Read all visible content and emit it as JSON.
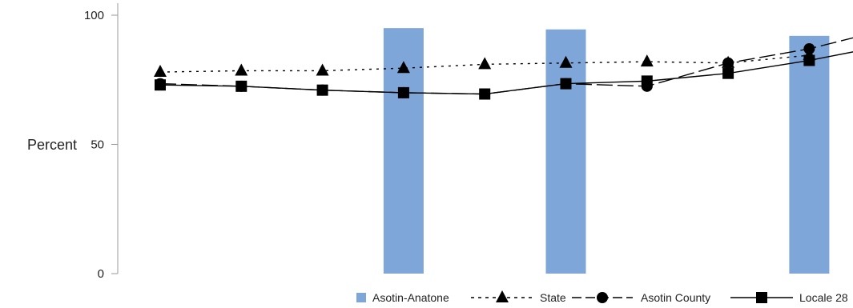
{
  "chart_data": {
    "type": "bar+line",
    "title": "",
    "xlabel": "",
    "ylabel": "Percent",
    "ylim": [
      0,
      100
    ],
    "yticks": [
      0,
      50,
      100
    ],
    "x": [
      1,
      2,
      3,
      4,
      5,
      6,
      7,
      8,
      9
    ],
    "bars": {
      "name": "Asotin-Anatone",
      "color": "#7ea6d8",
      "values": [
        null,
        null,
        null,
        95,
        null,
        94.5,
        null,
        null,
        92
      ]
    },
    "series": [
      {
        "name": "State",
        "marker": "triangle",
        "dash": "dotted",
        "values": [
          78,
          78.5,
          78.5,
          79.5,
          81,
          81.5,
          82,
          81.5,
          84.5
        ]
      },
      {
        "name": "Asotin County",
        "marker": "circle",
        "dash": "dashed",
        "values": [
          73.5,
          72.5,
          71,
          70,
          69.5,
          73.5,
          72.5,
          81.5,
          87
        ],
        "tail": 91.5
      },
      {
        "name": "Locale 28",
        "marker": "square",
        "dash": "solid",
        "values": [
          73,
          72.5,
          71,
          70,
          69.5,
          73.5,
          74.5,
          77.5,
          82.5
        ],
        "tail": 86
      }
    ],
    "legend": {
      "position": "bottom-right",
      "items": [
        "Asotin-Anatone",
        "State",
        "Asotin County",
        "Locale 28"
      ]
    },
    "grid": false
  }
}
